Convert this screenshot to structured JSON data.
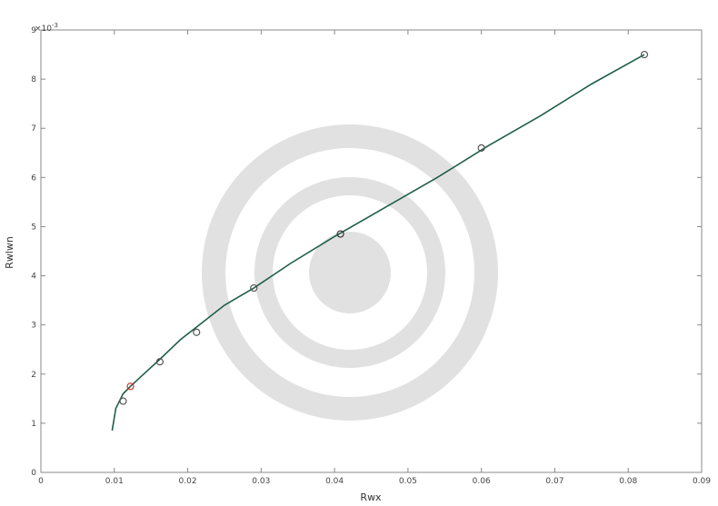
{
  "chart_data": {
    "type": "line",
    "title": "",
    "xlabel": "Rwx",
    "ylabel": "Rwlwn",
    "y_multiplier_label": "×10",
    "y_multiplier_exponent": "-3",
    "xlim": [
      0,
      0.09
    ],
    "ylim": [
      0,
      9
    ],
    "x_ticks": [
      0,
      0.01,
      0.02,
      0.03,
      0.04,
      0.05,
      0.06,
      0.07,
      0.08,
      0.09
    ],
    "x_tick_labels": [
      "0",
      "0.01",
      "0.02",
      "0.03",
      "0.04",
      "0.05",
      "0.06",
      "0.07",
      "0.08",
      "0.09"
    ],
    "y_ticks": [
      0,
      1,
      2,
      3,
      4,
      5,
      6,
      7,
      8,
      9
    ],
    "y_tick_labels": [
      "0",
      "1",
      "2",
      "3",
      "4",
      "5",
      "6",
      "7",
      "8",
      "9"
    ],
    "grid": false,
    "series": [
      {
        "name": "",
        "color": "#1f5f47",
        "x": [
          0.0097,
          0.0102,
          0.0112,
          0.0122,
          0.014,
          0.0162,
          0.019,
          0.022,
          0.025,
          0.029,
          0.034,
          0.04,
          0.047,
          0.054,
          0.061,
          0.068,
          0.075,
          0.0822
        ],
        "y": [
          0.85,
          1.3,
          1.6,
          1.75,
          2.0,
          2.3,
          2.7,
          3.05,
          3.4,
          3.75,
          4.25,
          4.8,
          5.4,
          6.0,
          6.65,
          7.25,
          7.9,
          8.5
        ]
      }
    ],
    "markers": [
      {
        "x": 0.0112,
        "y": 1.45,
        "color": "#555555"
      },
      {
        "x": 0.0122,
        "y": 1.75,
        "color": "#cc3333"
      },
      {
        "x": 0.0162,
        "y": 2.25,
        "color": "#555555"
      },
      {
        "x": 0.0212,
        "y": 2.85,
        "color": "#555555"
      },
      {
        "x": 0.029,
        "y": 3.75,
        "color": "#555555"
      },
      {
        "x": 0.0408,
        "y": 4.85,
        "color": "#333333"
      },
      {
        "x": 0.06,
        "y": 6.6,
        "color": "#555555"
      },
      {
        "x": 0.0822,
        "y": 8.5,
        "color": "#555555"
      }
    ]
  }
}
